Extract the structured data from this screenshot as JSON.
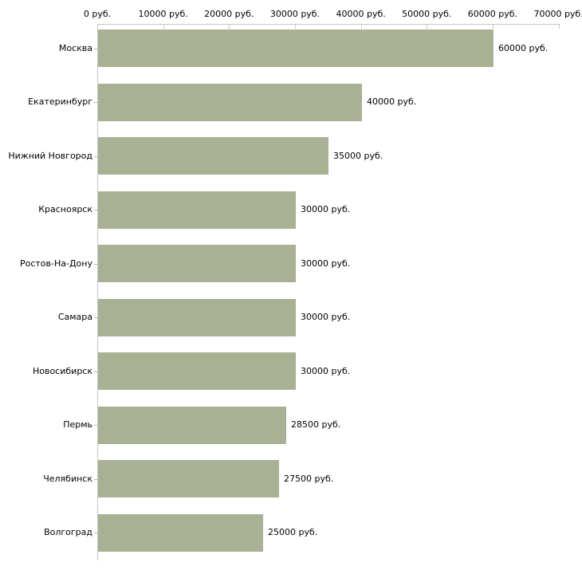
{
  "chart_data": {
    "type": "bar",
    "orientation": "horizontal",
    "title": "",
    "xlabel": "",
    "ylabel": "",
    "unit": "руб.",
    "categories": [
      "Москва",
      "Екатеринбург",
      "Нижний Новгород",
      "Красноярск",
      "Ростов-На-Дону",
      "Самара",
      "Новосибирск",
      "Пермь",
      "Челябинск",
      "Волгоград"
    ],
    "values": [
      60000,
      40000,
      35000,
      30000,
      30000,
      30000,
      30000,
      28500,
      27500,
      25000
    ],
    "value_labels": [
      "60000 руб.",
      "40000 руб.",
      "35000 руб.",
      "30000 руб.",
      "30000 руб.",
      "30000 руб.",
      "30000 руб.",
      "28500 руб.",
      "27500 руб.",
      "25000 руб."
    ],
    "x_axis": {
      "position": "top",
      "range": [
        0,
        70000
      ],
      "ticks": [
        0,
        10000,
        20000,
        30000,
        40000,
        50000,
        60000,
        70000
      ],
      "tick_labels": [
        "0 руб.",
        "10000 руб.",
        "20000 руб.",
        "30000 руб.",
        "40000 руб.",
        "50000 руб.",
        "60000 руб.",
        "70000 руб."
      ]
    },
    "grid": false,
    "legend": false,
    "colors": {
      "bar_fill": "#a8b194",
      "axis_line": "#c6c6c6",
      "x_tick": "#cdd0b0",
      "y_tick": "#b9bca6",
      "text": "#000000",
      "background": "#ffffff"
    }
  }
}
